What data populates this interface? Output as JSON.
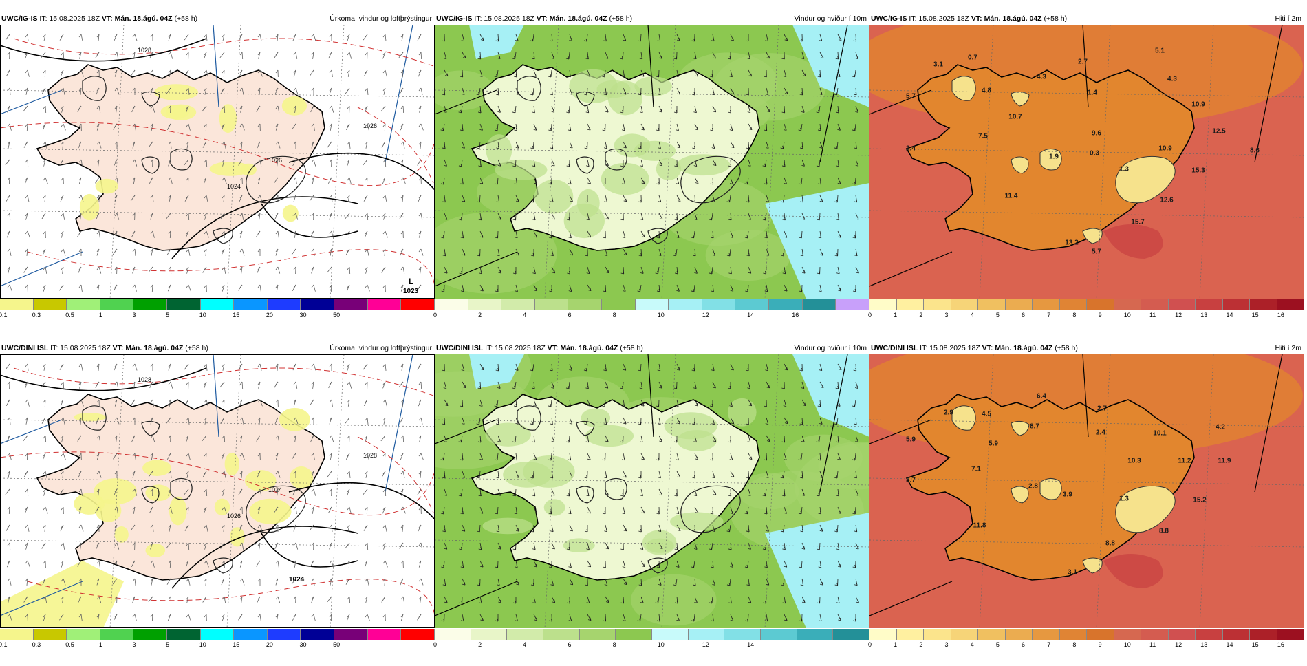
{
  "panels": [
    {
      "id": "p1",
      "model": "UWC/IG-IS",
      "it": "IT: 15.08.2025 18Z",
      "vt": "VT: Mán. 18.ágú. 04Z",
      "lead": "(+58 h)",
      "title": "Úrkoma, vindur og loftþrýstingur",
      "theme": "precip",
      "colorbar": {
        "colors": [
          "#f5f58c",
          "#c8c800",
          "#a0f078",
          "#50d250",
          "#00a000",
          "#006432",
          "#00ffff",
          "#0a96ff",
          "#1e3cff",
          "#000096",
          "#780078",
          "#ff0096",
          "#ff0000"
        ],
        "ticks": [
          "0.1",
          "0.3",
          "0.5",
          "1",
          "3",
          "5",
          "10",
          "15",
          "20",
          "30",
          "50"
        ]
      },
      "low": {
        "symbol": "L",
        "value": "1023"
      },
      "isobars": [
        "1028",
        "1026",
        "1024",
        "1026"
      ]
    },
    {
      "id": "p2",
      "model": "UWC/IG-IS",
      "it": "IT: 15.08.2025 18Z",
      "vt": "VT: Mán. 18.ágú. 04Z",
      "lead": "(+58 h)",
      "title": "Vindur og hviður í 10m",
      "theme": "wind",
      "colorbar": {
        "colors": [
          "#fbfde8",
          "#e8f5c8",
          "#d2ebaa",
          "#bce08c",
          "#a6d46e",
          "#8cc850",
          "#c8fafa",
          "#a6f0f5",
          "#82e0e6",
          "#5ccad2",
          "#3aaeb9",
          "#239098",
          "#c8a0fa"
        ],
        "ticks": [
          "0",
          "2",
          "4",
          "6",
          "8",
          "10",
          "12",
          "14",
          "16"
        ]
      }
    },
    {
      "id": "p3",
      "model": "UWC/IG-IS",
      "it": "IT: 15.08.2025 18Z",
      "vt": "VT: Mán. 18.ágú. 04Z",
      "lead": "(+58 h)",
      "title": "Hiti í 2m",
      "theme": "temp",
      "colorbar": {
        "colors": [
          "#fffcc8",
          "#fff0a0",
          "#fbe48c",
          "#f6d478",
          "#f0c060",
          "#ebac50",
          "#e69840",
          "#e08434",
          "#d8742c",
          "#d66850",
          "#d45c50",
          "#d05050",
          "#c84040",
          "#bc3034",
          "#ac2028",
          "#9c1020"
        ],
        "ticks": [
          "0",
          "1",
          "2",
          "3",
          "4",
          "5",
          "6",
          "7",
          "8",
          "9",
          "10",
          "11",
          "12",
          "13",
          "14",
          "15",
          "16"
        ]
      },
      "labels": [
        "3.1",
        "0.7",
        "5.7",
        "4.8",
        "4.3",
        "2.7",
        "5.1",
        "4.3",
        "1.4",
        "10.7",
        "9.6",
        "10.9",
        "12.5",
        "8.6",
        "7.5",
        "2.4",
        "1.9",
        "0.3",
        "1.3",
        "10.9",
        "15.3",
        "11.4",
        "12.6",
        "15.7",
        "13.2",
        "5.7"
      ]
    },
    {
      "id": "p4",
      "model": "UWC/DINI ISL",
      "it": "IT: 15.08.2025 18Z",
      "vt": "VT: Mán. 18.ágú. 04Z",
      "lead": "(+58 h)",
      "title": "Úrkoma, vindur og loftþrýstingur",
      "theme": "precip",
      "colorbar": {
        "colors": [
          "#f5f58c",
          "#c8c800",
          "#a0f078",
          "#50d250",
          "#00a000",
          "#006432",
          "#00ffff",
          "#0a96ff",
          "#1e3cff",
          "#000096",
          "#780078",
          "#ff0096",
          "#ff0000"
        ],
        "ticks": [
          "0.1",
          "0.3",
          "0.5",
          "1",
          "3",
          "5",
          "10",
          "15",
          "20",
          "30",
          "50"
        ]
      },
      "low": {
        "symbol": "",
        "value": "1024"
      },
      "isobars": [
        "1028",
        "1028",
        "1026",
        "1024"
      ]
    },
    {
      "id": "p5",
      "model": "UWC/DINI ISL",
      "it": "IT: 15.08.2025 18Z",
      "vt": "VT: Mán. 18.ágú. 04Z",
      "lead": "(+58 h)",
      "title": "Vindur og hviður í 10m",
      "theme": "wind",
      "colorbar": {
        "colors": [
          "#fbfde8",
          "#e8f5c8",
          "#d2ebaa",
          "#bce08c",
          "#a6d46e",
          "#8cc850",
          "#c8fafa",
          "#a6f0f5",
          "#82e0e6",
          "#5ccad2",
          "#3aaeb9",
          "#239098"
        ],
        "ticks": [
          "0",
          "2",
          "4",
          "6",
          "8",
          "10",
          "12",
          "14"
        ]
      }
    },
    {
      "id": "p6",
      "model": "UWC/DINI ISL",
      "it": "IT: 15.08.2025 18Z",
      "vt": "VT: Mán. 18.ágú. 04Z",
      "lead": "(+58 h)",
      "title": "Hiti í 2m",
      "theme": "temp",
      "colorbar": {
        "colors": [
          "#fffcc8",
          "#fff0a0",
          "#fbe48c",
          "#f6d478",
          "#f0c060",
          "#ebac50",
          "#e69840",
          "#e08434",
          "#d8742c",
          "#d66850",
          "#d45c50",
          "#d05050",
          "#c84040",
          "#bc3034",
          "#ac2028",
          "#9c1020"
        ],
        "ticks": [
          "0",
          "1",
          "2",
          "3",
          "4",
          "5",
          "6",
          "7",
          "8",
          "9",
          "10",
          "11",
          "12",
          "13",
          "14",
          "15",
          "16"
        ]
      },
      "labels": [
        "2.9",
        "4.5",
        "6.4",
        "5.9",
        "5.9",
        "8.7",
        "2.7",
        "2.4",
        "10.1",
        "4.2",
        "7.1",
        "3.7",
        "10.3",
        "11.2",
        "11.9",
        "2.8",
        "3.9",
        "1.3",
        "15.2",
        "11.8",
        "8.8",
        "8.8",
        "3.1"
      ]
    }
  ]
}
